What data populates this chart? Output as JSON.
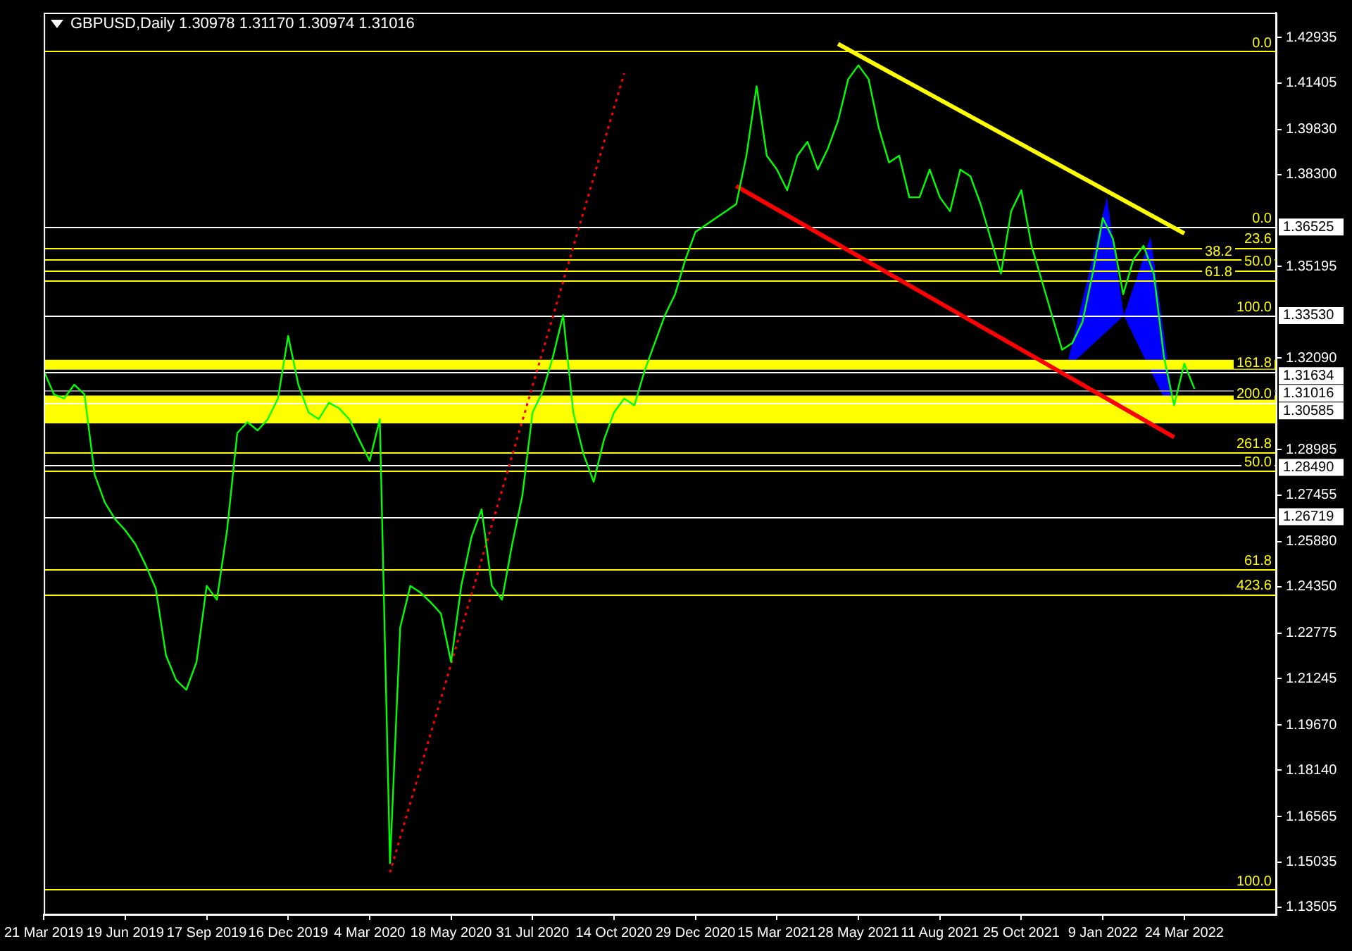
{
  "chart_data": {
    "type": "line",
    "title": "GBPUSD,Daily 1.30978 1.31170 1.30974 1.31016",
    "categories": [
      "21 Mar 2019",
      null,
      null,
      null,
      null,
      null,
      null,
      null,
      "19 Jun 2019",
      null,
      null,
      null,
      null,
      null,
      null,
      null,
      "17 Sep 2019",
      null,
      null,
      null,
      null,
      null,
      null,
      null,
      "16 Dec 2019",
      null,
      null,
      null,
      null,
      null,
      null,
      null,
      "4 Mar 2020",
      null,
      null,
      null,
      null,
      null,
      null,
      null,
      "18 May 2020",
      null,
      null,
      null,
      null,
      null,
      null,
      null,
      "31 Jul 2020",
      null,
      null,
      null,
      null,
      null,
      null,
      null,
      "14 Oct 2020",
      null,
      null,
      null,
      null,
      null,
      null,
      null,
      "29 Dec 2020",
      null,
      null,
      null,
      null,
      null,
      null,
      null,
      "15 Mar 2021",
      null,
      null,
      null,
      null,
      null,
      null,
      null,
      "28 May 2021",
      null,
      null,
      null,
      null,
      null,
      null,
      null,
      "11 Aug 2021",
      null,
      null,
      null,
      null,
      null,
      null,
      null,
      "25 Oct 2021",
      null,
      null,
      null,
      null,
      null,
      null,
      null,
      "9 Jan 2022",
      null,
      null,
      null,
      null,
      null,
      null,
      null,
      "24 Mar 2022",
      null
    ],
    "series": [
      {
        "color": "#00ff00",
        "values": [
          1.3166,
          1.3086,
          1.3072,
          1.3119,
          1.3086,
          1.2814,
          1.272,
          1.2664,
          1.2626,
          1.2579,
          1.2509,
          1.2429,
          1.2203,
          1.2119,
          1.2086,
          1.218,
          1.2438,
          1.2391,
          1.2626,
          1.2955,
          1.2992,
          1.2964,
          1.3002,
          1.3072,
          1.3284,
          1.3119,
          1.3025,
          1.3002,
          1.3058,
          1.3039,
          1.3002,
          1.2931,
          1.2861,
          1.3002,
          1.1499,
          1.2297,
          1.2438,
          1.2415,
          1.2382,
          1.2344,
          1.218,
          1.2438,
          1.2603,
          1.2697,
          1.2438,
          1.2391,
          1.2579,
          1.2744,
          1.3025,
          1.3096,
          1.3213,
          1.3354,
          1.3025,
          1.2884,
          1.279,
          1.2931,
          1.3025,
          1.3072,
          1.3049,
          1.3166,
          1.326,
          1.3354,
          1.3425,
          1.3542,
          1.3636,
          1.3659,
          1.3683,
          1.3706,
          1.373,
          1.3894,
          1.4129,
          1.3894,
          1.3847,
          1.3777,
          1.3894,
          1.3941,
          1.3847,
          1.3918,
          1.4012,
          1.4153,
          1.42,
          1.4153,
          1.3988,
          1.3871,
          1.3894,
          1.3753,
          1.3753,
          1.3847,
          1.3753,
          1.3706,
          1.3847,
          1.3824,
          1.373,
          1.3612,
          1.3495,
          1.3706,
          1.3777,
          1.3589,
          1.3472,
          1.3354,
          1.3237,
          1.326,
          1.3331,
          1.3495,
          1.3683,
          1.3612,
          1.3425,
          1.3542,
          1.3589,
          1.3495,
          1.3213,
          1.3049,
          1.319,
          1.3105
        ]
      },
      {
        "type": "line",
        "color": "#ffff00",
        "line_style": "solid",
        "values": [
          null,
          null,
          null,
          null,
          null,
          null,
          null,
          null,
          null,
          null,
          null,
          null,
          null,
          null,
          null,
          null,
          null,
          null,
          null,
          null,
          null,
          null,
          null,
          null,
          null,
          null,
          null,
          null,
          null,
          null,
          null,
          null,
          null,
          null,
          null,
          null,
          null,
          null,
          null,
          null,
          null,
          null,
          null,
          null,
          null,
          null,
          null,
          null,
          null,
          null,
          null,
          null,
          null,
          null,
          null,
          null,
          null,
          null,
          null,
          null,
          null,
          null,
          null,
          null,
          null,
          null,
          null,
          null,
          null,
          null,
          null,
          null,
          null,
          null,
          null,
          null,
          null,
          null,
          1.4272,
          null,
          null,
          null,
          null,
          null,
          null,
          null,
          null,
          null,
          null,
          null,
          null,
          null,
          null,
          null,
          null,
          null,
          null,
          null,
          null,
          null,
          null,
          null,
          null,
          null,
          null,
          null,
          null,
          null,
          null,
          null,
          null,
          null,
          1.3631,
          null
        ]
      },
      {
        "type": "line",
        "color": "#ff0000",
        "line_style": "solid",
        "values": [
          null,
          null,
          null,
          null,
          null,
          null,
          null,
          null,
          null,
          null,
          null,
          null,
          null,
          null,
          null,
          null,
          null,
          null,
          null,
          null,
          null,
          null,
          null,
          null,
          null,
          null,
          null,
          null,
          null,
          null,
          null,
          null,
          null,
          null,
          null,
          null,
          null,
          null,
          null,
          null,
          null,
          null,
          null,
          null,
          null,
          null,
          null,
          null,
          null,
          null,
          null,
          null,
          null,
          null,
          null,
          null,
          null,
          null,
          null,
          null,
          null,
          null,
          null,
          null,
          null,
          null,
          null,
          null,
          1.3791,
          null,
          null,
          null,
          null,
          null,
          null,
          null,
          null,
          null,
          null,
          null,
          null,
          null,
          null,
          null,
          null,
          null,
          null,
          null,
          null,
          null,
          null,
          null,
          null,
          null,
          null,
          null,
          null,
          null,
          null,
          null,
          null,
          null,
          null,
          null,
          null,
          null,
          null,
          null,
          null,
          null,
          null,
          1.2941,
          null,
          null
        ]
      },
      {
        "type": "line",
        "color": "#ff0000",
        "line_style": "dotted",
        "values": [
          null,
          null,
          null,
          null,
          null,
          null,
          null,
          null,
          null,
          null,
          null,
          null,
          null,
          null,
          null,
          null,
          null,
          null,
          null,
          null,
          null,
          null,
          null,
          null,
          null,
          null,
          null,
          null,
          null,
          null,
          null,
          null,
          null,
          null,
          1.1468,
          null,
          null,
          null,
          null,
          null,
          null,
          null,
          null,
          null,
          null,
          null,
          null,
          null,
          null,
          null,
          null,
          null,
          null,
          null,
          null,
          null,
          null,
          1.4173,
          null,
          null,
          null,
          null,
          null,
          null,
          null,
          null,
          null,
          null,
          null,
          null,
          null,
          null,
          null,
          null,
          null,
          null,
          null,
          null,
          null,
          null,
          null,
          null,
          null,
          null,
          null,
          null,
          null,
          null,
          null,
          null,
          null,
          null,
          null,
          null,
          null,
          null,
          null,
          null,
          null,
          null,
          null,
          null,
          null,
          null,
          null,
          null,
          null,
          null,
          null,
          null,
          null,
          null,
          null,
          null
        ]
      }
    ],
    "ylim": [
      1.1326,
      1.4378
    ],
    "yticks": [
      1.42935,
      1.41405,
      {
        "value": 1.3983,
        "label": "1.39830"
      },
      {
        "value": 1.383,
        "label": "1.38300"
      },
      1.35195,
      {
        "value": 1.3209,
        "label": "1.32090"
      },
      1.28985,
      1.27455,
      {
        "value": 1.2588,
        "label": "1.25880"
      },
      {
        "value": 1.2435,
        "label": "1.24350"
      },
      1.22775,
      1.21245,
      {
        "value": 1.1967,
        "label": "1.19670"
      },
      {
        "value": 1.1814,
        "label": "1.18140"
      },
      1.16565,
      1.15035,
      1.13505
    ],
    "ref_lines": [
      {
        "axis": "y",
        "value": 1.4247,
        "color": "#ffff00"
      },
      {
        "axis": "y",
        "value": 1.36525,
        "label": "1.36525",
        "color": "#ffffff"
      },
      {
        "axis": "y",
        "value": 1.3584,
        "color": "#ffff00"
      },
      {
        "axis": "y",
        "value": 1.3542,
        "color": "#ffff00"
      },
      {
        "axis": "y",
        "value": 1.3507,
        "color": "#ffff00"
      },
      {
        "axis": "y",
        "value": 1.3472,
        "color": "#ffff00"
      },
      {
        "axis": "y",
        "value": 1.3353,
        "label": "1.33530",
        "color": "#ffffff"
      },
      {
        "axis": "y",
        "value": 1.31634,
        "label": "1.31634",
        "color": "#ffffff"
      },
      {
        "axis": "y",
        "value": 1.31016,
        "label": "1.31016",
        "color": "#8c8c8c"
      },
      {
        "axis": "y",
        "value": 1.30585,
        "label": "1.30585",
        "color": "#ffffff"
      },
      {
        "axis": "y",
        "value": 1.2889,
        "color": "#ffff00"
      },
      {
        "axis": "y",
        "value": 1.2849,
        "label": "1.28490",
        "color": "#ffffff"
      },
      {
        "axis": "y",
        "value": 1.2828,
        "color": "#ffff00"
      },
      {
        "axis": "y",
        "value": 1.26719,
        "label": "1.26719",
        "color": "#ffffff"
      },
      {
        "axis": "y",
        "value": 1.2494,
        "color": "#ffff00"
      },
      {
        "axis": "y",
        "value": 1.241,
        "color": "#ffff00"
      },
      {
        "axis": "y",
        "value": 1.141,
        "color": "#ffff00"
      }
    ],
    "bands": [
      {
        "axis": "y",
        "from": 1.317,
        "to": 1.3203,
        "color": "#ffff00"
      },
      {
        "axis": "y",
        "from": 1.2988,
        "to": 1.3082,
        "color": "#ffff00"
      }
    ],
    "annotations": [
      {
        "text": "0.0",
        "y": 1.4247
      },
      {
        "text": "0.0",
        "y": 1.36525
      },
      {
        "text": "23.6",
        "y": 1.3584
      },
      {
        "text": "38.2",
        "y": 1.3542
      },
      {
        "text": "50.0",
        "y": 1.3507
      },
      {
        "text": "61.8",
        "y": 1.3472
      },
      {
        "text": "100.0",
        "y": 1.3353
      },
      {
        "text": "161.8",
        "y": 1.31634
      },
      {
        "text": "200.0",
        "y": 1.30585
      },
      {
        "text": "261.8",
        "y": 1.2889
      },
      {
        "text": "50.0",
        "y": 1.2828
      },
      {
        "text": "61.8",
        "y": 1.2494
      },
      {
        "text": "423.6",
        "y": 1.241
      },
      {
        "text": "100.0",
        "y": 1.141
      }
    ],
    "grid": false,
    "legend": false,
    "marker": "none",
    "line_style": "solid"
  }
}
